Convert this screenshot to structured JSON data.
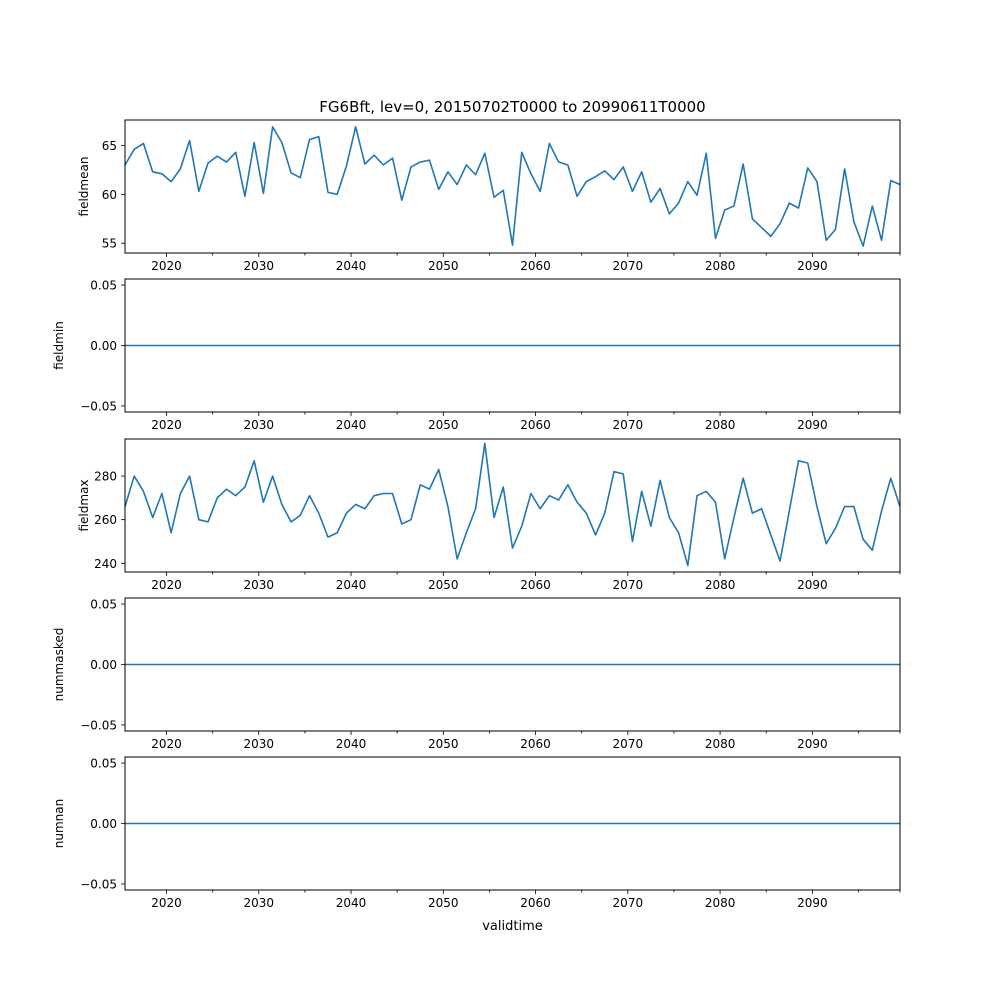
{
  "figure": {
    "title": "FG6Bft, lev=0, 20150702T0000 to 20990611T0000",
    "xlabel": "validtime"
  },
  "style": {
    "line_color": "#1f77b4",
    "axis_color": "#000000"
  },
  "chart_data": [
    {
      "type": "line",
      "ylabel": "fieldmean",
      "xlim": [
        2015.5,
        2099.5
      ],
      "ylim": [
        54,
        67.6
      ],
      "yticks": [
        55,
        60,
        65
      ],
      "ytick_labels": [
        "55",
        "60",
        "65"
      ],
      "xticks": [
        2020,
        2030,
        2040,
        2050,
        2060,
        2070,
        2080,
        2090
      ],
      "xtick_labels": [
        "2020",
        "2030",
        "2040",
        "2050",
        "2060",
        "2070",
        "2080",
        "2090"
      ],
      "x_start": 2015.5,
      "x_step": 1,
      "values": [
        63.0,
        64.6,
        65.2,
        62.3,
        62.1,
        61.3,
        62.6,
        65.5,
        60.3,
        63.2,
        63.9,
        63.3,
        64.3,
        59.8,
        65.3,
        60.1,
        66.9,
        65.3,
        62.2,
        61.7,
        65.6,
        65.9,
        60.2,
        60.0,
        62.9,
        66.9,
        63.1,
        64.0,
        63.0,
        63.7,
        59.4,
        62.8,
        63.3,
        63.5,
        60.5,
        62.3,
        61.0,
        63.0,
        62.0,
        64.2,
        59.7,
        60.4,
        54.8,
        64.3,
        62.1,
        60.3,
        65.2,
        63.3,
        63.0,
        59.8,
        61.3,
        61.8,
        62.4,
        61.5,
        62.8,
        60.3,
        62.3,
        59.2,
        60.6,
        58.0,
        59.1,
        61.3,
        59.9,
        64.2,
        55.5,
        58.4,
        58.8,
        63.1,
        57.5,
        56.6,
        55.7,
        57.0,
        59.1,
        58.6,
        62.7,
        61.3,
        55.3,
        56.4,
        62.6,
        57.2,
        54.7,
        58.8,
        55.3,
        61.4,
        61.0
      ]
    },
    {
      "type": "line",
      "ylabel": "fieldmin",
      "xlim": [
        2015.5,
        2099.5
      ],
      "ylim": [
        -0.055,
        0.055
      ],
      "yticks": [
        -0.05,
        0.0,
        0.05
      ],
      "ytick_labels": [
        "−0.05",
        "0.00",
        "0.05"
      ],
      "xticks": [
        2020,
        2030,
        2040,
        2050,
        2060,
        2070,
        2080,
        2090
      ],
      "xtick_labels": [
        "2020",
        "2030",
        "2040",
        "2050",
        "2060",
        "2070",
        "2080",
        "2090"
      ],
      "constant_value": 0
    },
    {
      "type": "line",
      "ylabel": "fieldmax",
      "xlim": [
        2015.5,
        2099.5
      ],
      "ylim": [
        236,
        297
      ],
      "yticks": [
        240,
        260,
        280
      ],
      "ytick_labels": [
        "240",
        "260",
        "280"
      ],
      "xticks": [
        2020,
        2030,
        2040,
        2050,
        2060,
        2070,
        2080,
        2090
      ],
      "xtick_labels": [
        "2020",
        "2030",
        "2040",
        "2050",
        "2060",
        "2070",
        "2080",
        "2090"
      ],
      "x_start": 2015.5,
      "x_step": 1,
      "values": [
        266,
        280,
        273,
        261,
        272,
        254,
        272,
        280,
        260,
        259,
        270,
        274,
        271,
        275,
        287,
        268,
        280,
        267,
        259,
        262,
        271,
        263,
        252,
        254,
        263,
        267,
        265,
        271,
        272,
        272,
        258,
        260,
        276,
        274,
        283,
        266,
        242,
        254,
        265,
        295,
        261,
        275,
        247,
        257,
        272,
        265,
        271,
        269,
        276,
        268,
        263,
        253,
        263,
        282,
        281,
        250,
        273,
        257,
        278,
        261,
        254,
        239,
        271,
        273,
        268,
        242,
        261,
        279,
        263,
        265,
        253,
        241,
        264,
        287,
        286,
        266,
        249,
        256,
        266,
        266,
        251,
        246,
        264,
        279,
        266
      ]
    },
    {
      "type": "line",
      "ylabel": "nummasked",
      "xlim": [
        2015.5,
        2099.5
      ],
      "ylim": [
        -0.055,
        0.055
      ],
      "yticks": [
        -0.05,
        0.0,
        0.05
      ],
      "ytick_labels": [
        "−0.05",
        "0.00",
        "0.05"
      ],
      "xticks": [
        2020,
        2030,
        2040,
        2050,
        2060,
        2070,
        2080,
        2090
      ],
      "xtick_labels": [
        "2020",
        "2030",
        "2040",
        "2050",
        "2060",
        "2070",
        "2080",
        "2090"
      ],
      "constant_value": 0
    },
    {
      "type": "line",
      "ylabel": "numnan",
      "xlim": [
        2015.5,
        2099.5
      ],
      "ylim": [
        -0.055,
        0.055
      ],
      "yticks": [
        -0.05,
        0.0,
        0.05
      ],
      "ytick_labels": [
        "−0.05",
        "0.00",
        "0.05"
      ],
      "xticks": [
        2020,
        2030,
        2040,
        2050,
        2060,
        2070,
        2080,
        2090
      ],
      "xtick_labels": [
        "2020",
        "2030",
        "2040",
        "2050",
        "2060",
        "2070",
        "2080",
        "2090"
      ],
      "constant_value": 0
    }
  ]
}
